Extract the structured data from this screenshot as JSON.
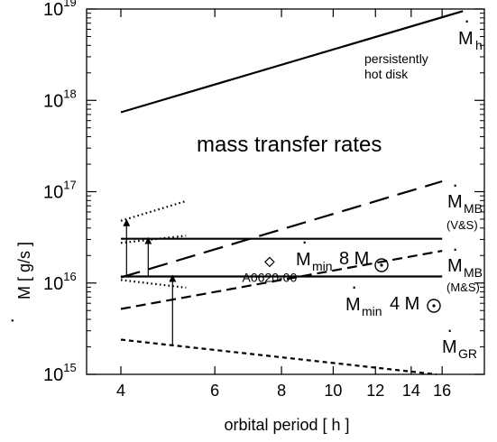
{
  "chart_data": {
    "type": "line",
    "title": "mass transfer rates",
    "xlabel": "orbital period  [ h ]",
    "ylabel": "M [ g/s ]",
    "ylabel_dot": "·",
    "x_scale": "log",
    "y_scale": "log",
    "xlim": [
      3.45,
      19.2
    ],
    "ylim": [
      1000000000000000.0,
      1e+19
    ],
    "grid": false,
    "x_ticks": [
      {
        "value": 4,
        "label": "4"
      },
      {
        "value": 6,
        "label": "6"
      },
      {
        "value": 8,
        "label": "8"
      },
      {
        "value": 10,
        "label": "10"
      },
      {
        "value": 12,
        "label": "12"
      },
      {
        "value": 14,
        "label": "14"
      },
      {
        "value": 16,
        "label": "16"
      }
    ],
    "y_ticks": [
      {
        "value": 1000000000000000.0,
        "base": "10",
        "exp": "15"
      },
      {
        "value": 1e+16,
        "base": "10",
        "exp": "16"
      },
      {
        "value": 1e+17,
        "base": "10",
        "exp": "17"
      },
      {
        "value": 1e+18,
        "base": "10",
        "exp": "18"
      },
      {
        "value": 1e+19,
        "base": "10",
        "exp": "19"
      }
    ],
    "series": [
      {
        "name": "Mh",
        "style": "solid",
        "x": [
          4,
          17.5
        ],
        "y": [
          7.4e+17,
          9.5e+18
        ]
      },
      {
        "name": "Mmin 8 M",
        "style": "solid",
        "x": [
          4,
          16
        ],
        "y": [
          3.05e+16,
          3.05e+16
        ]
      },
      {
        "name": "Mmin 4 M",
        "style": "solid",
        "x": [
          4,
          16
        ],
        "y": [
          1.18e+16,
          1.18e+16
        ]
      },
      {
        "name": "MMB (V&S)",
        "style": "longdash",
        "x": [
          4,
          16
        ],
        "y": [
          1.15e+16,
          1.3e+17
        ]
      },
      {
        "name": "MMB (M&S)",
        "style": "dash",
        "x": [
          4,
          16
        ],
        "y": [
          5200000000000000.0,
          2.25e+16
        ]
      },
      {
        "name": "MGR",
        "style": "shortdash",
        "x": [
          4,
          15.6
        ],
        "y": [
          2400000000000000.0,
          1000000000000000.0
        ]
      },
      {
        "name": "dotted-upper",
        "style": "dotted",
        "x": [
          4,
          5.3
        ],
        "y": [
          4.8e+16,
          7.9e+16
        ]
      },
      {
        "name": "dotted-mid",
        "style": "dotted",
        "x": [
          4,
          5.3
        ],
        "y": [
          2.75e+16,
          3.3e+16
        ]
      },
      {
        "name": "dotted-low",
        "style": "dotted",
        "x": [
          4,
          5.3
        ],
        "y": [
          1.08e+16,
          8900000000000000.0
        ]
      }
    ],
    "arrows": [
      {
        "x": 4.1,
        "y_from": 1.18e+16,
        "y_to": 4.8e+16
      },
      {
        "x": 4.5,
        "y_from": 1.18e+16,
        "y_to": 3.05e+16
      },
      {
        "x": 5.0,
        "y_from": 2100000000000000.0,
        "y_to": 1.18e+16
      }
    ],
    "points": [
      {
        "label": "A0620-00",
        "x": 7.6,
        "y": 1.7e+16,
        "marker": "diamond"
      }
    ],
    "annotations": {
      "hot_disk_line1": "persistently",
      "hot_disk_line2": "hot disk",
      "mh_main": "M",
      "mh_sub": "h",
      "vs_main": "M",
      "vs_sub": "MB",
      "vs_paren": "(V&S)",
      "ms_main": "M",
      "ms_sub": "MB",
      "ms_paren": "(M&S)",
      "gr_main": "M",
      "gr_sub": "GR",
      "min8_main": "M",
      "min8_sub": "min",
      "min8_mass": "8 M",
      "min4_main": "M",
      "min4_sub": "min",
      "min4_mass": "4 M",
      "dot": "·"
    }
  }
}
